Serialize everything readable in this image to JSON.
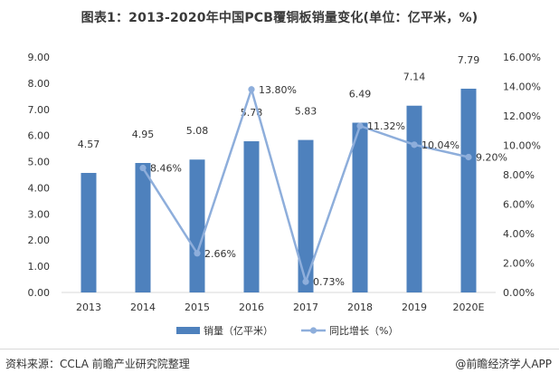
{
  "title": "图表1：2013-2020年中国PCB覆铜板销量变化(单位：亿平米，%)",
  "source": "资料来源：CCLA 前瞻产业研究院整理",
  "brand": "@前瞻经济学人APP",
  "colors": {
    "bar": "#4e81bd",
    "line": "#8eaedb",
    "axis_text": "#333333",
    "grid": "#d9d9d9"
  },
  "chart_data": {
    "type": "bar",
    "categories": [
      "2013",
      "2014",
      "2015",
      "2016",
      "2017",
      "2018",
      "2019",
      "2020E"
    ],
    "series": [
      {
        "name": "销量（亿平米）",
        "type": "bar",
        "axis": "left",
        "values": [
          4.57,
          4.95,
          5.08,
          5.78,
          5.83,
          6.49,
          7.14,
          7.79
        ],
        "labels": [
          "4.57",
          "4.95",
          "5.08",
          "5.78",
          "5.83",
          "6.49",
          "7.14",
          "7.79"
        ]
      },
      {
        "name": "同比增长（%）",
        "type": "line",
        "axis": "right",
        "values": [
          null,
          8.46,
          2.66,
          13.8,
          0.73,
          11.32,
          10.04,
          9.2
        ],
        "labels": [
          "",
          "8.46%",
          "2.66%",
          "13.80%",
          "0.73%",
          "11.32%",
          "10.04%",
          "9.20%"
        ]
      }
    ],
    "y_left": {
      "ylim": [
        0,
        9
      ],
      "ticks": [
        "0.00",
        "1.00",
        "2.00",
        "3.00",
        "4.00",
        "5.00",
        "6.00",
        "7.00",
        "8.00",
        "9.00"
      ]
    },
    "y_right": {
      "ylim": [
        0,
        16
      ],
      "ticks": [
        "0.00%",
        "2.00%",
        "4.00%",
        "6.00%",
        "8.00%",
        "10.00%",
        "12.00%",
        "14.00%",
        "16.00%"
      ]
    },
    "grid": false,
    "legend": "bottom"
  }
}
